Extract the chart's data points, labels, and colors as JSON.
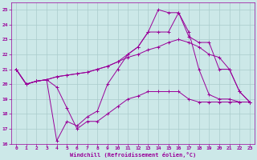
{
  "background_color": "#cce8e8",
  "grid_color": "#aacccc",
  "line_color": "#990099",
  "xlabel": "Windchill (Refroidissement éolien,°C)",
  "xlim": [
    -0.5,
    23.5
  ],
  "ylim": [
    16,
    25.5
  ],
  "yticks": [
    16,
    17,
    18,
    19,
    20,
    21,
    22,
    23,
    24,
    25
  ],
  "xticks": [
    0,
    1,
    2,
    3,
    4,
    5,
    6,
    7,
    8,
    9,
    10,
    11,
    12,
    13,
    14,
    15,
    16,
    17,
    18,
    19,
    20,
    21,
    22,
    23
  ],
  "series": [
    {
      "x": [
        0,
        1,
        2,
        3,
        4,
        5,
        6,
        7,
        8,
        9,
        10,
        11,
        12,
        13,
        14,
        15,
        16,
        17,
        18,
        19,
        20,
        21,
        22,
        23
      ],
      "y": [
        21.0,
        20.0,
        20.2,
        20.3,
        19.8,
        18.4,
        17.0,
        17.5,
        17.5,
        18.0,
        18.5,
        19.0,
        19.2,
        19.5,
        19.5,
        19.5,
        19.5,
        19.0,
        18.8,
        18.8,
        18.8,
        18.8,
        18.8,
        18.8
      ]
    },
    {
      "x": [
        0,
        1,
        2,
        3,
        4,
        5,
        6,
        7,
        8,
        9,
        10,
        11,
        12,
        13,
        14,
        15,
        16,
        17,
        18,
        19,
        20,
        21,
        22,
        23
      ],
      "y": [
        21.0,
        20.0,
        20.2,
        20.3,
        16.2,
        17.5,
        17.2,
        17.8,
        18.2,
        20.0,
        21.0,
        22.0,
        22.5,
        23.5,
        25.0,
        24.8,
        24.8,
        23.5,
        21.0,
        19.3,
        19.0,
        19.0,
        18.8,
        18.8
      ]
    },
    {
      "x": [
        0,
        1,
        2,
        3,
        4,
        5,
        6,
        7,
        8,
        9,
        10,
        11,
        12,
        13,
        14,
        15,
        16,
        17,
        18,
        19,
        20,
        21,
        22,
        23
      ],
      "y": [
        21.0,
        20.0,
        20.2,
        20.3,
        20.5,
        20.6,
        20.7,
        20.8,
        21.0,
        21.2,
        21.5,
        21.8,
        22.0,
        22.3,
        22.5,
        22.8,
        23.0,
        22.8,
        22.5,
        22.0,
        21.8,
        21.0,
        19.5,
        18.8
      ]
    },
    {
      "x": [
        0,
        1,
        2,
        3,
        4,
        5,
        6,
        7,
        8,
        9,
        10,
        11,
        12,
        13,
        14,
        15,
        16,
        17,
        18,
        19,
        20,
        21,
        22,
        23
      ],
      "y": [
        21.0,
        20.0,
        20.2,
        20.3,
        20.5,
        20.6,
        20.7,
        20.8,
        21.0,
        21.2,
        21.5,
        22.0,
        22.5,
        23.5,
        23.5,
        23.5,
        24.8,
        23.2,
        22.8,
        22.8,
        21.0,
        21.0,
        19.5,
        18.8
      ]
    }
  ]
}
